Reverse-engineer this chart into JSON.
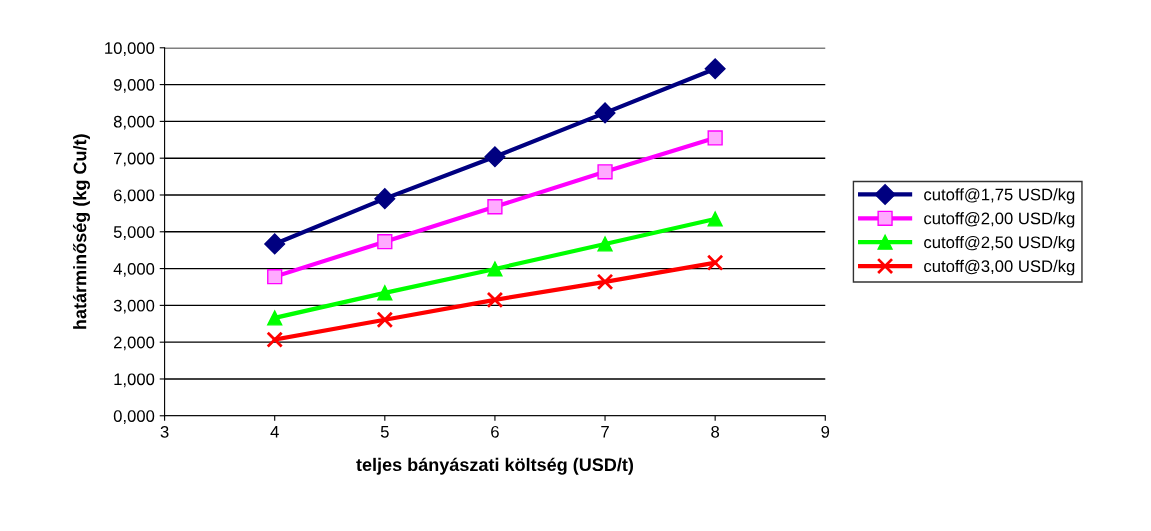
{
  "chart_data": {
    "type": "line",
    "xlabel": "teljes bányászati költség (USD/t)",
    "ylabel": "határminőség (kg Cu/t)",
    "xlim": [
      3,
      9
    ],
    "xticks": [
      3,
      4,
      5,
      6,
      7,
      8,
      9
    ],
    "ylim": [
      0,
      10
    ],
    "yticks": [
      {
        "value": 0,
        "label": "0,000"
      },
      {
        "value": 1,
        "label": "1,000"
      },
      {
        "value": 2,
        "label": "2,000"
      },
      {
        "value": 3,
        "label": "3,000"
      },
      {
        "value": 4,
        "label": "4,000"
      },
      {
        "value": 5,
        "label": "5,000"
      },
      {
        "value": 6,
        "label": "6,000"
      },
      {
        "value": 7,
        "label": "7,000"
      },
      {
        "value": 8,
        "label": "8,000"
      },
      {
        "value": 9,
        "label": "9,000"
      },
      {
        "value": 10,
        "label": "10,000"
      }
    ],
    "x": [
      4,
      5,
      6,
      7,
      8
    ],
    "grid": "y",
    "legend": "right",
    "line_style": "solid",
    "series": [
      {
        "name": "cutoff@1,75 USD/kg",
        "color": "#000080",
        "marker": "diamond",
        "values": [
          4.67,
          5.9,
          7.04,
          8.23,
          9.43
        ]
      },
      {
        "name": "cutoff@2,00 USD/kg",
        "color": "#ff00ff",
        "marker": "square",
        "values": [
          3.78,
          4.73,
          5.68,
          6.63,
          7.55
        ]
      },
      {
        "name": "cutoff@2,50 USD/kg",
        "color": "#00ff00",
        "marker": "triangle",
        "values": [
          2.66,
          3.34,
          3.99,
          4.67,
          5.35
        ]
      },
      {
        "name": "cutoff@3,00 USD/kg",
        "color": "#ff0000",
        "marker": "cross",
        "values": [
          2.07,
          2.61,
          3.15,
          3.64,
          4.16
        ]
      }
    ]
  }
}
